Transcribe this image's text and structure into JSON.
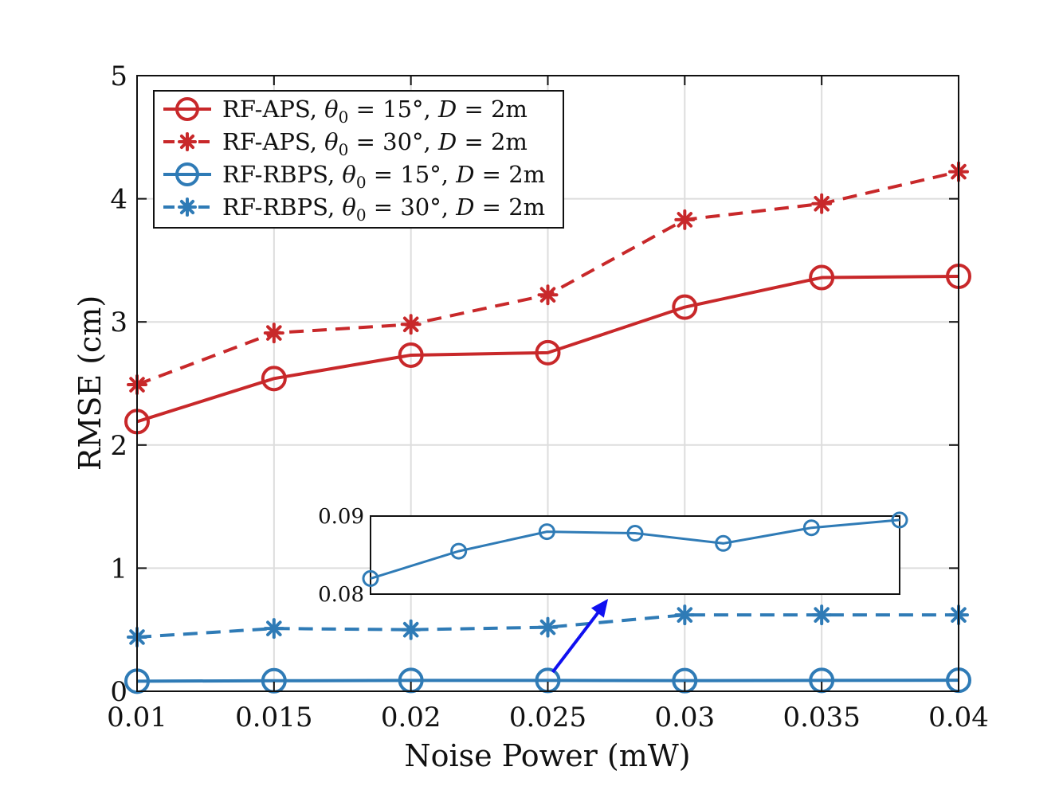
{
  "chart_data": {
    "type": "line",
    "xlabel": "Noise Power (mW)",
    "ylabel": "RMSE (cm)",
    "xlim": [
      0.01,
      0.04
    ],
    "ylim": [
      0,
      5
    ],
    "xticks": [
      "0.01",
      "0.015",
      "0.02",
      "0.025",
      "0.03",
      "0.035",
      "0.04"
    ],
    "yticks": [
      "0",
      "1",
      "2",
      "3",
      "4",
      "5"
    ],
    "grid": true,
    "legend_position": "top-left",
    "x": [
      0.01,
      0.015,
      0.02,
      0.025,
      0.03,
      0.035,
      0.04
    ],
    "series": [
      {
        "name": "RF-APS, θ₀ = 15°, D = 2m",
        "name_prefix": "RF-APS,",
        "theta_value": "15°",
        "color": "#c8282a",
        "dashed": false,
        "marker": "circle",
        "values": [
          2.19,
          2.54,
          2.73,
          2.75,
          3.12,
          3.36,
          3.37
        ]
      },
      {
        "name": "RF-APS, θ₀ = 30°, D = 2m",
        "name_prefix": "RF-APS,",
        "theta_value": "30°",
        "color": "#c8282a",
        "dashed": true,
        "marker": "star",
        "values": [
          2.49,
          2.91,
          2.98,
          3.22,
          3.83,
          3.96,
          4.22
        ]
      },
      {
        "name": "RF-RBPS, θ₀ = 15°, D = 2m",
        "name_prefix": "RF-RBPS,",
        "theta_value": "15°",
        "color": "#2f7bb6",
        "dashed": false,
        "marker": "circle",
        "values": [
          0.082,
          0.0855,
          0.088,
          0.0878,
          0.0865,
          0.0885,
          0.0895
        ]
      },
      {
        "name": "RF-RBPS, θ₀ = 30°, D = 2m",
        "name_prefix": "RF-RBPS,",
        "theta_value": "30°",
        "color": "#2f7bb6",
        "dashed": true,
        "marker": "star",
        "values": [
          0.44,
          0.51,
          0.5,
          0.52,
          0.62,
          0.62,
          0.62
        ]
      }
    ],
    "inset": {
      "series": "RF-RBPS, θ₀ = 15°, D = 2m",
      "ylim": [
        0.08,
        0.09
      ],
      "yticks": [
        "0.08",
        "0.09"
      ],
      "values": [
        0.082,
        0.0855,
        0.088,
        0.0878,
        0.0865,
        0.0885,
        0.0895
      ]
    }
  }
}
